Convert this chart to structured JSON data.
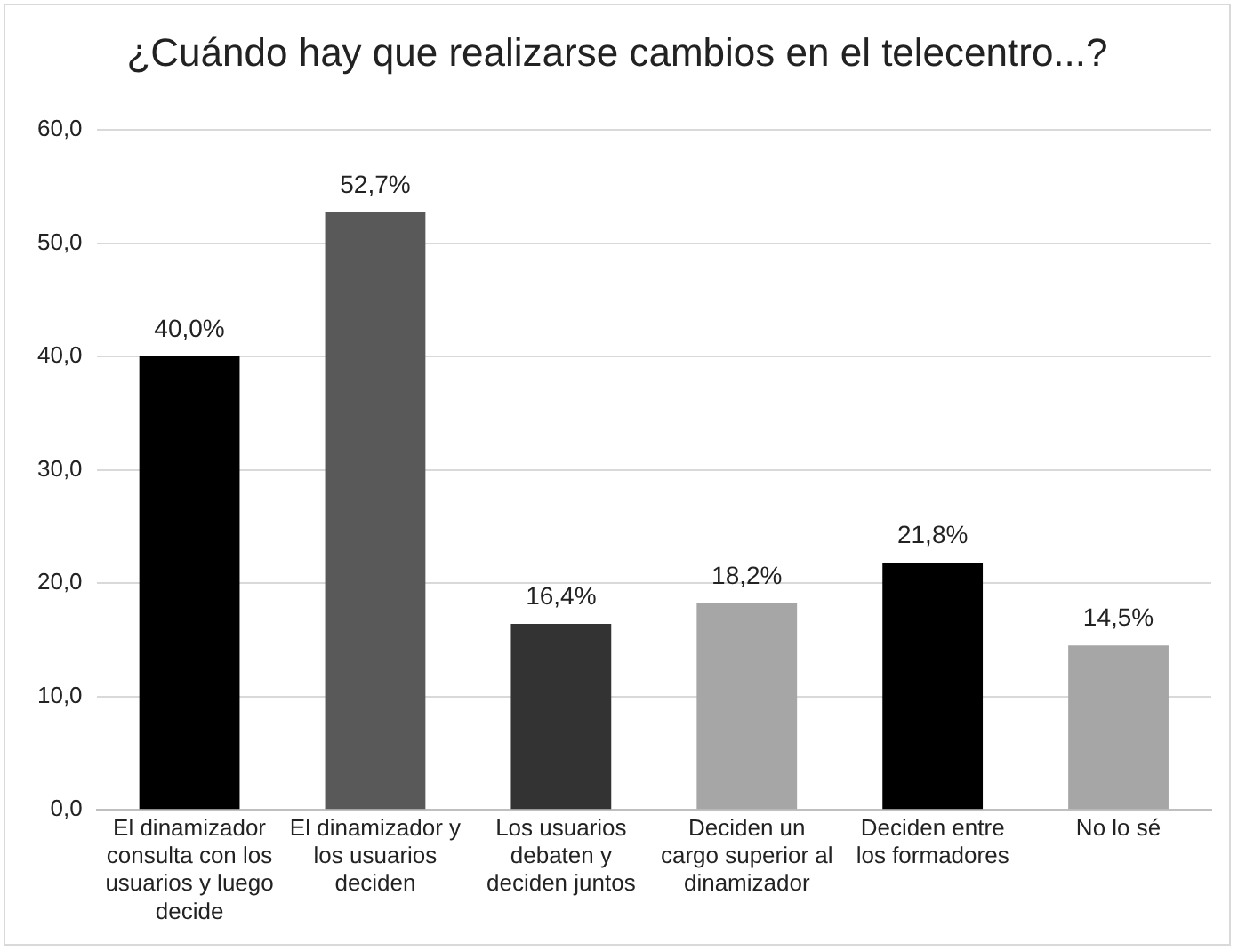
{
  "chart_data": {
    "type": "bar",
    "title": "¿Cuándo hay que realizarse cambios en el telecentro...?",
    "categories": [
      "El dinamizador consulta con los usuarios y luego decide",
      "El dinamizador y los usuarios deciden",
      "Los usuarios debaten y deciden juntos",
      "Deciden un cargo superior al dinamizador",
      "Deciden entre los formadores",
      "No lo sé"
    ],
    "values": [
      40.0,
      52.7,
      16.4,
      18.2,
      21.8,
      14.5
    ],
    "colors": [
      "#000000",
      "#595959",
      "#333333",
      "#a6a6a6",
      "#000000",
      "#a6a6a6"
    ],
    "value_labels": [
      "40,0%",
      "52,7%",
      "16,4%",
      "18,2%",
      "21,8%",
      "14,5%"
    ],
    "ylim": [
      0,
      60
    ],
    "yticks": [
      {
        "value": 0,
        "label": "0,0"
      },
      {
        "value": 10,
        "label": "10,0"
      },
      {
        "value": 20,
        "label": "20,0"
      },
      {
        "value": 30,
        "label": "30,0"
      },
      {
        "value": 40,
        "label": "40,0"
      },
      {
        "value": 50,
        "label": "50,0"
      },
      {
        "value": 60,
        "label": "60,0"
      }
    ],
    "grid": "y",
    "legend": false
  }
}
